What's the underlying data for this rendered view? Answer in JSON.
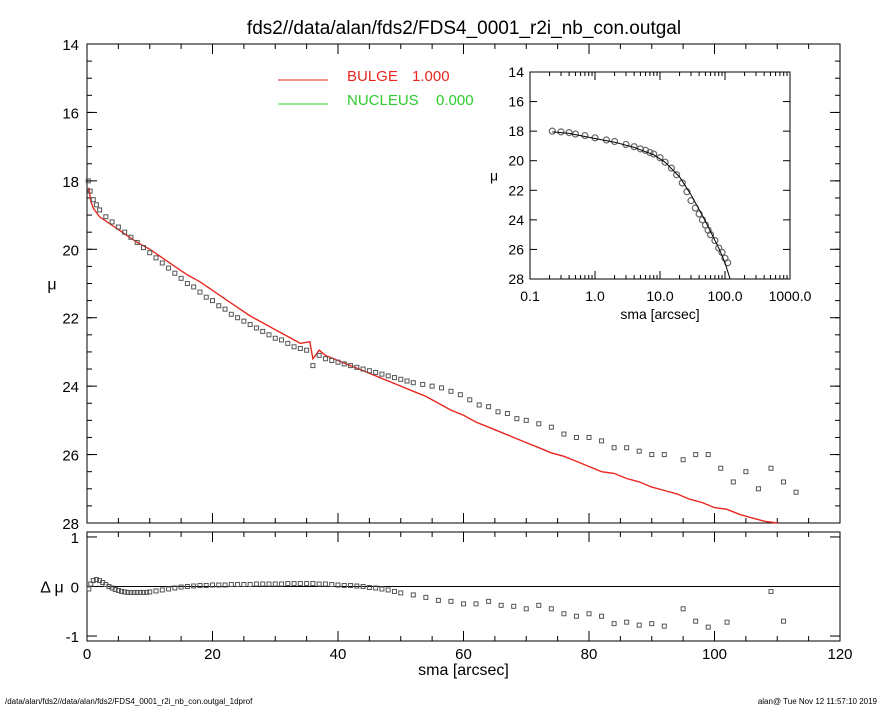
{
  "title": "fds2//data/alan/fds2/FDS4_0001_r2i_nb_con.outgal",
  "footer_left": "/data/alan/fds2//data/alan/fds2/FDS4_0001_r2i_nb_con.outgal_1dprof",
  "footer_right": "alan@  Tue Nov 12 11:57:10 2019",
  "colors": {
    "bulge": "#e8271e",
    "nucleus": "#2ecc2e",
    "points": "#555555",
    "axis": "#000000"
  },
  "chart_data": [
    {
      "id": "main-profile",
      "type": "scatter",
      "xlabel": "",
      "ylabel": "μ",
      "xlim": [
        0,
        120
      ],
      "ylim": [
        28,
        14
      ],
      "y_inverted": true,
      "x_ticks": [
        0,
        20,
        40,
        60,
        80,
        100,
        120
      ],
      "y_ticks": [
        14,
        16,
        18,
        20,
        22,
        24,
        26,
        28
      ],
      "y_tick_labels": [
        "14",
        "16",
        "18",
        "20",
        "22",
        "24",
        "26",
        "28"
      ],
      "legend": [
        {
          "label": "BULGE",
          "value": "1.000",
          "color": "#e8271e"
        },
        {
          "label": "NUCLEUS",
          "value": "0.000",
          "color": "#2ecc2e"
        }
      ],
      "legend_position": "top-center",
      "series": [
        {
          "name": "BULGE",
          "kind": "line",
          "color": "#e8271e",
          "x": [
            0.3,
            0.6,
            1.0,
            2,
            4,
            6,
            8,
            10,
            12,
            14,
            16,
            18,
            20,
            22,
            24,
            26,
            28,
            30,
            32,
            34,
            35.5,
            36,
            37,
            38,
            40,
            42,
            44,
            46,
            48,
            50,
            52,
            54,
            56,
            58,
            60,
            62,
            64,
            66,
            68,
            70,
            72,
            74,
            76,
            78,
            80,
            82,
            84,
            86,
            88,
            90,
            92,
            94,
            96,
            98,
            100,
            102,
            104,
            106,
            108,
            110
          ],
          "y": [
            18.2,
            18.6,
            18.8,
            19.05,
            19.3,
            19.55,
            19.8,
            20.0,
            20.25,
            20.5,
            20.75,
            20.95,
            21.2,
            21.45,
            21.7,
            21.95,
            22.15,
            22.35,
            22.55,
            22.75,
            22.7,
            23.2,
            22.95,
            23.1,
            23.25,
            23.4,
            23.55,
            23.7,
            23.85,
            24.0,
            24.15,
            24.3,
            24.5,
            24.7,
            24.85,
            25.05,
            25.2,
            25.35,
            25.5,
            25.65,
            25.8,
            25.95,
            26.05,
            26.2,
            26.35,
            26.5,
            26.55,
            26.7,
            26.8,
            26.95,
            27.05,
            27.15,
            27.3,
            27.4,
            27.55,
            27.6,
            27.75,
            27.85,
            27.95,
            28.0
          ]
        },
        {
          "name": "data",
          "kind": "points",
          "x": [
            0.2,
            0.5,
            1.0,
            1.5,
            2,
            3,
            4,
            5,
            6,
            7,
            8,
            9,
            10,
            11,
            12,
            13,
            14,
            15,
            16,
            17,
            18,
            19,
            20,
            21,
            22,
            23,
            24,
            25,
            26,
            27,
            28,
            29,
            30,
            31,
            32,
            33,
            34,
            35,
            36,
            37,
            38,
            39,
            40,
            41,
            42,
            43,
            44,
            45,
            46,
            47,
            48,
            49,
            50,
            51,
            52,
            53.5,
            55,
            56.5,
            58,
            59.5,
            61,
            62.5,
            64,
            65.5,
            67,
            68.5,
            70,
            72,
            74,
            76,
            78,
            80,
            82,
            84,
            86,
            88,
            90,
            92,
            95,
            97,
            99,
            101,
            103,
            105,
            107,
            109,
            111,
            113
          ],
          "y": [
            18.0,
            18.3,
            18.55,
            18.7,
            18.85,
            19.05,
            19.2,
            19.35,
            19.5,
            19.65,
            19.8,
            19.95,
            20.1,
            20.25,
            20.4,
            20.55,
            20.7,
            20.85,
            21.0,
            21.1,
            21.25,
            21.4,
            21.5,
            21.65,
            21.75,
            21.9,
            22.0,
            22.1,
            22.2,
            22.3,
            22.4,
            22.5,
            22.6,
            22.65,
            22.75,
            22.85,
            22.9,
            22.95,
            23.4,
            23.1,
            23.2,
            23.25,
            23.3,
            23.35,
            23.4,
            23.45,
            23.5,
            23.55,
            23.6,
            23.65,
            23.7,
            23.75,
            23.8,
            23.85,
            23.9,
            23.95,
            24.0,
            24.05,
            24.15,
            24.25,
            24.4,
            24.55,
            24.6,
            24.75,
            24.8,
            24.95,
            25.0,
            25.1,
            25.2,
            25.4,
            25.5,
            25.5,
            25.6,
            25.8,
            25.8,
            25.9,
            26.0,
            26.0,
            26.15,
            26.0,
            26.0,
            26.4,
            26.8,
            26.5,
            27.0,
            26.4,
            26.8,
            27.1
          ]
        }
      ]
    },
    {
      "id": "inset-log-profile",
      "type": "scatter",
      "xlabel": "sma [arcsec]",
      "ylabel": "μ",
      "x_scale": "log",
      "xlim": [
        0.1,
        1000
      ],
      "ylim": [
        28,
        14
      ],
      "y_inverted": true,
      "x_ticks": [
        0.1,
        1.0,
        10.0,
        100.0,
        1000.0
      ],
      "x_tick_labels": [
        "0.1",
        "1.0",
        "10.0",
        "100.0",
        "1000.0"
      ],
      "y_ticks": [
        14,
        16,
        18,
        20,
        22,
        24,
        26,
        28
      ],
      "y_tick_labels": [
        "14",
        "16",
        "18",
        "20",
        "22",
        "24",
        "26",
        "28"
      ],
      "series": [
        {
          "name": "data",
          "kind": "points",
          "x": [
            0.22,
            0.3,
            0.4,
            0.5,
            0.7,
            1.0,
            1.5,
            2,
            3,
            4,
            5,
            6,
            7,
            8,
            10,
            12,
            15,
            18,
            22,
            26,
            30,
            35,
            40,
            45,
            50,
            55,
            60,
            70,
            80,
            90,
            100,
            110
          ],
          "y": [
            18.0,
            18.05,
            18.1,
            18.2,
            18.3,
            18.45,
            18.6,
            18.7,
            18.9,
            19.05,
            19.2,
            19.3,
            19.45,
            19.55,
            19.8,
            20.1,
            20.5,
            20.95,
            21.5,
            22.1,
            22.7,
            23.2,
            23.6,
            24.0,
            24.35,
            24.7,
            25.0,
            25.4,
            25.9,
            26.2,
            26.6,
            26.9
          ]
        },
        {
          "name": "model",
          "kind": "line",
          "x": [
            0.22,
            0.4,
            1.0,
            2,
            4,
            8,
            12,
            20,
            30,
            40,
            50,
            60,
            80,
            100,
            120
          ],
          "y": [
            18.05,
            18.15,
            18.5,
            18.75,
            19.1,
            19.6,
            20.1,
            21.1,
            22.3,
            23.3,
            24.1,
            24.8,
            25.9,
            26.9,
            28.0
          ]
        }
      ]
    },
    {
      "id": "residuals",
      "type": "scatter",
      "xlabel": "sma [arcsec]",
      "ylabel": "Δ μ",
      "xlim": [
        0,
        120
      ],
      "ylim": [
        -1.1,
        1.1
      ],
      "x_ticks": [
        0,
        20,
        40,
        60,
        80,
        100,
        120
      ],
      "x_tick_labels": [
        "0",
        "20",
        "40",
        "60",
        "80",
        "100",
        "120"
      ],
      "y_ticks": [
        1,
        0,
        -1
      ],
      "y_tick_labels": [
        "1",
        "0",
        "-1"
      ],
      "reference_line": 0,
      "series": [
        {
          "name": "residual",
          "kind": "points",
          "x": [
            0.3,
            0.6,
            1.0,
            1.5,
            2,
            2.5,
            3,
            3.5,
            4,
            4.5,
            5,
            5.5,
            6,
            6.5,
            7,
            7.5,
            8,
            8.5,
            9,
            9.5,
            10,
            11,
            12,
            13,
            14,
            15,
            16,
            17,
            18,
            19,
            20,
            21,
            22,
            23,
            24,
            25,
            26,
            27,
            28,
            29,
            30,
            31,
            32,
            33,
            34,
            35,
            36,
            37,
            38,
            39,
            40,
            41,
            42,
            43,
            44,
            45,
            46,
            47,
            48,
            49,
            50,
            52,
            54,
            56,
            58,
            60,
            62,
            64,
            66,
            68,
            70,
            72,
            74,
            76,
            78,
            80,
            82,
            84,
            86,
            88,
            90,
            92,
            95,
            97,
            99,
            102,
            109,
            111
          ],
          "y": [
            -0.05,
            0.05,
            0.12,
            0.14,
            0.12,
            0.08,
            0.04,
            0.0,
            -0.03,
            -0.06,
            -0.08,
            -0.1,
            -0.11,
            -0.12,
            -0.12,
            -0.12,
            -0.12,
            -0.12,
            -0.12,
            -0.12,
            -0.11,
            -0.09,
            -0.07,
            -0.05,
            -0.03,
            -0.01,
            0.0,
            0.01,
            0.02,
            0.02,
            0.03,
            0.03,
            0.03,
            0.04,
            0.04,
            0.04,
            0.04,
            0.05,
            0.05,
            0.05,
            0.05,
            0.05,
            0.06,
            0.06,
            0.06,
            0.06,
            0.06,
            0.05,
            0.05,
            0.04,
            0.03,
            0.02,
            0.02,
            0.01,
            0.0,
            -0.02,
            -0.03,
            -0.05,
            -0.07,
            -0.1,
            -0.13,
            -0.17,
            -0.22,
            -0.28,
            -0.3,
            -0.35,
            -0.35,
            -0.3,
            -0.38,
            -0.4,
            -0.45,
            -0.38,
            -0.45,
            -0.55,
            -0.6,
            -0.55,
            -0.6,
            -0.75,
            -0.72,
            -0.78,
            -0.75,
            -0.8,
            -0.45,
            -0.7,
            -0.82,
            -0.72,
            -0.1,
            -0.7
          ]
        }
      ]
    }
  ]
}
